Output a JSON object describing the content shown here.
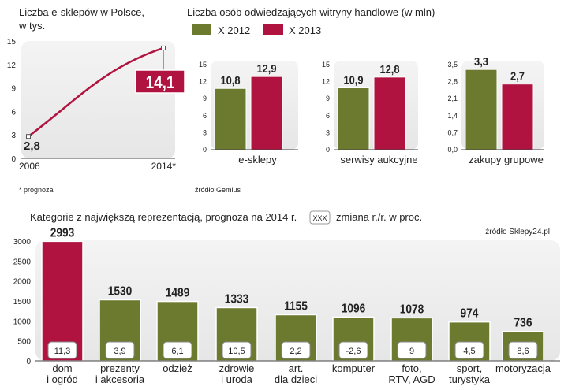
{
  "colors": {
    "green": "#6b7a2f",
    "red": "#b0133f",
    "panel": "#eeeeee",
    "text": "#222222"
  },
  "chart_data": [
    {
      "id": "ecommerce-count",
      "type": "line",
      "title": "Liczba e-sklepów w Polsce,",
      "subtitle": "w tys.",
      "x": [
        "2006",
        "2014*"
      ],
      "values": [
        2.8,
        14.1
      ],
      "value_labels": [
        "2,8",
        "14,1"
      ],
      "ylim": [
        0,
        15
      ],
      "yticks": [
        "0",
        "3",
        "6",
        "9",
        "12",
        "15"
      ],
      "note": "* prognoza"
    },
    {
      "id": "visitors",
      "type": "bar",
      "title": "Liczba osób odwiedzających witryny handlowe (w mln)",
      "legend": [
        "X 2012",
        "X 2013"
      ],
      "source": "źródło Gemius",
      "panels": [
        {
          "category": "e-sklepy",
          "values": [
            10.8,
            12.9
          ],
          "labels": [
            "10,8",
            "12,9"
          ],
          "ylim": [
            0,
            15
          ],
          "yticks": [
            "0",
            "3",
            "6",
            "9",
            "12",
            "15"
          ]
        },
        {
          "category": "serwisy aukcyjne",
          "values": [
            10.9,
            12.8
          ],
          "labels": [
            "10,9",
            "12,8"
          ],
          "ylim": [
            0,
            15
          ],
          "yticks": [
            "0",
            "3",
            "6",
            "9",
            "12",
            "15"
          ]
        },
        {
          "category": "zakupy grupowe",
          "values": [
            3.3,
            2.7
          ],
          "labels": [
            "3,3",
            "2,7"
          ],
          "ylim": [
            0,
            3.5
          ],
          "yticks": [
            "0,0",
            "0,7",
            "1,4",
            "2,1",
            "2,8",
            "3,5"
          ]
        }
      ]
    },
    {
      "id": "categories",
      "type": "bar",
      "title": "Kategorie z największą reprezentacją, prognoza na 2014 r.",
      "legend_box": "XXX",
      "legend_text": "zmiana r./r. w proc.",
      "source": "źródło Sklepy24.pl",
      "ylim": [
        0,
        3000
      ],
      "yticks": [
        "0",
        "500",
        "1000",
        "1500",
        "2000",
        "2500",
        "3000"
      ],
      "bars": [
        {
          "name": [
            "dom",
            "i ogród"
          ],
          "value": 2993,
          "label": "2993",
          "change": "11,3",
          "highlight": true
        },
        {
          "name": [
            "prezenty",
            "i akcesoria"
          ],
          "value": 1530,
          "label": "1530",
          "change": "3,9",
          "highlight": false
        },
        {
          "name": [
            "odzież"
          ],
          "value": 1489,
          "label": "1489",
          "change": "6,1",
          "highlight": false
        },
        {
          "name": [
            "zdrowie",
            "i uroda"
          ],
          "value": 1333,
          "label": "1333",
          "change": "10,5",
          "highlight": false
        },
        {
          "name": [
            "art.",
            "dla dzieci"
          ],
          "value": 1155,
          "label": "1155",
          "change": "2,2",
          "highlight": false
        },
        {
          "name": [
            "komputer"
          ],
          "value": 1096,
          "label": "1096",
          "change": "-2,6",
          "highlight": false
        },
        {
          "name": [
            "foto,",
            "RTV, AGD"
          ],
          "value": 1078,
          "label": "1078",
          "change": "9",
          "highlight": false
        },
        {
          "name": [
            "sport,",
            "turystyka"
          ],
          "value": 974,
          "label": "974",
          "change": "4,5",
          "highlight": false
        },
        {
          "name": [
            "motoryzacja"
          ],
          "value": 736,
          "label": "736",
          "change": "8,6",
          "highlight": false
        }
      ]
    }
  ]
}
